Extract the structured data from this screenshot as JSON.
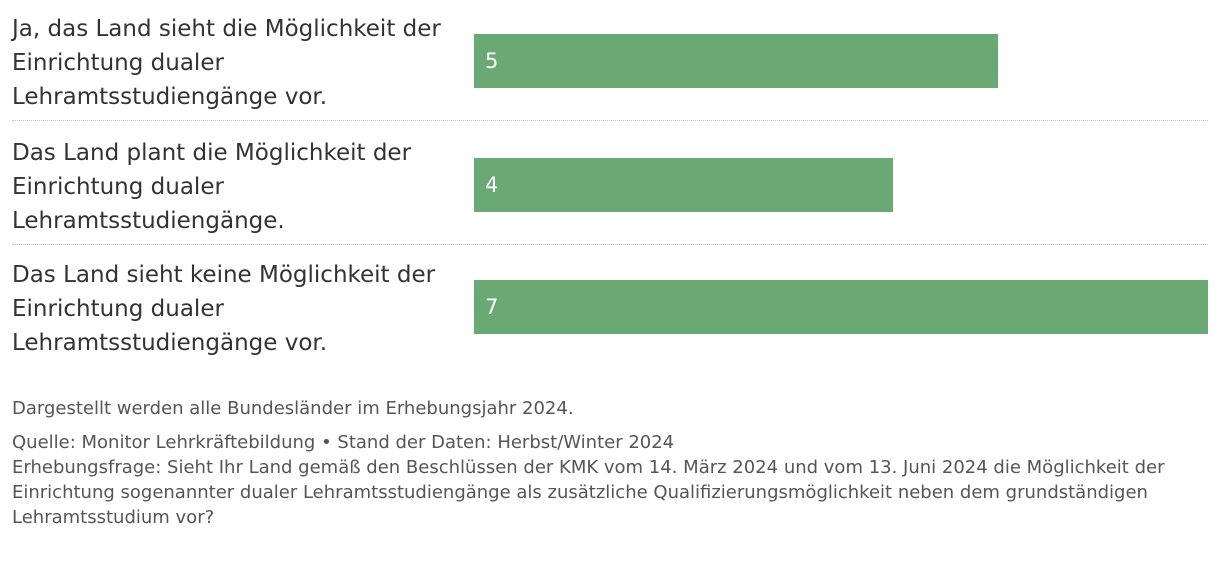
{
  "chart_data": {
    "type": "bar",
    "orientation": "horizontal",
    "categories": [
      [
        "Ja, das Land sieht die Möglichkeit der",
        "Einrichtung dualer",
        "Lehramtsstudiengänge vor."
      ],
      [
        "Das Land plant die Möglichkeit der",
        "Einrichtung dualer",
        "Lehramtsstudiengänge."
      ],
      [
        "Das Land sieht keine Möglichkeit der",
        "Einrichtung dualer",
        "Lehramtsstudiengänge vor."
      ]
    ],
    "values": [
      5,
      4,
      7
    ],
    "xlim": [
      0,
      7
    ],
    "grid": false,
    "bar_color": "#6aa874",
    "value_label_color": "#ffffff"
  },
  "footer": {
    "note": "Dargestellt werden alle Bundesländer im Erhebungsjahr 2024.",
    "source": "Quelle: Monitor Lehrkräftebildung • Stand der Daten: Herbst/Winter 2024",
    "question": "Erhebungsfrage: Sieht Ihr Land gemäß den Beschlüssen der KMK vom 14. März 2024 und vom 13. Juni 2024 die Möglichkeit der Einrichtung sogenannter dualer Lehramtsstudiengänge als zusätzliche Qualifizierungsmöglichkeit neben dem grundständigen Lehramtsstudium vor?"
  }
}
